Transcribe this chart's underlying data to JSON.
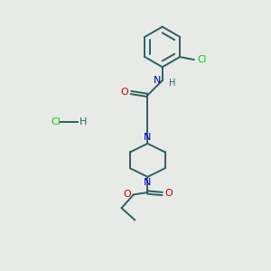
{
  "background_color": "#e8eae8",
  "bond_color": "#2d6060",
  "N_color": "#0000cc",
  "O_color": "#cc0000",
  "Cl_color": "#00cc00",
  "figsize": [
    3.0,
    3.0
  ],
  "dpi": 100,
  "xlim": [
    0,
    10
  ],
  "ylim": [
    0,
    10
  ]
}
